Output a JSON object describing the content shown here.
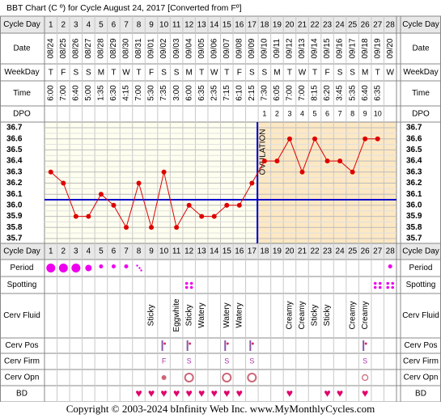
{
  "header": {
    "title": "BBT Chart (C º) for Cycle August 24, 2017  [Converted from Fº]"
  },
  "row_labels": {
    "cycle_day": "Cycle Day",
    "date": "Date",
    "weekday": "WeekDay",
    "time": "Time",
    "dpo": "DPO",
    "period": "Period",
    "spotting": "Spotting",
    "cerv_fluid": "Cerv Fluid",
    "cerv_pos": "Cerv Pos",
    "cerv_firm": "Cerv Firm",
    "cerv_opn": "Cerv Opn",
    "bd": "BD"
  },
  "annotation": "OVULATION",
  "colors": {
    "border": "#888888",
    "header_bg": "#e8e8e8",
    "pre_ov_bg": "#fffff0",
    "post_ov_bg": "#fde8c4",
    "temp_line": "#dd0000",
    "coverline": "#0000cc",
    "period": "#ee00ee",
    "bd_heart": "#e0006c",
    "firm_text": "#aa33aa",
    "opening": "#cc6677"
  },
  "chart_data": {
    "type": "line",
    "title": "BBT Chart (C º) for Cycle August 24, 2017  [Converted from Fº]",
    "cycle_days": [
      1,
      2,
      3,
      4,
      5,
      6,
      7,
      8,
      9,
      10,
      11,
      12,
      13,
      14,
      15,
      16,
      17,
      18,
      19,
      20,
      21,
      22,
      23,
      24,
      25,
      26,
      27,
      28
    ],
    "dates": [
      "08/24",
      "08/25",
      "08/26",
      "08/27",
      "08/28",
      "08/29",
      "08/30",
      "08/31",
      "09/01",
      "09/02",
      "09/03",
      "09/04",
      "09/05",
      "09/06",
      "09/07",
      "09/08",
      "09/09",
      "09/10",
      "09/11",
      "09/12",
      "09/13",
      "09/14",
      "09/15",
      "09/16",
      "09/17",
      "09/18",
      "09/19",
      "09/20"
    ],
    "weekdays": [
      "T",
      "F",
      "S",
      "S",
      "M",
      "T",
      "W",
      "T",
      "F",
      "S",
      "S",
      "M",
      "T",
      "W",
      "T",
      "F",
      "S",
      "S",
      "M",
      "T",
      "W",
      "T",
      "F",
      "S",
      "S",
      "M",
      "T",
      "W"
    ],
    "times": [
      "6:00",
      "7:00",
      "6:40",
      "5:00",
      "1:35",
      "6:30",
      "4:15",
      "7:00",
      "5:30",
      "7:35",
      "3:00",
      "6:00",
      "6:35",
      "2:35",
      "7:15",
      "6:10",
      "2:15",
      "7:30",
      "6:05",
      "7:00",
      "7:00",
      "8:15",
      "6:20",
      "3:45",
      "5:35",
      "6:40",
      "6:35",
      ""
    ],
    "dpo": [
      "",
      "",
      "",
      "",
      "",
      "",
      "",
      "",
      "",
      "",
      "",
      "",
      "",
      "",
      "",
      "",
      "",
      "1",
      "2",
      "3",
      "4",
      "5",
      "6",
      "7",
      "8",
      "9",
      "10",
      ""
    ],
    "temperatures": [
      36.3,
      36.2,
      35.9,
      35.9,
      36.1,
      36.0,
      35.8,
      36.2,
      35.8,
      36.3,
      35.8,
      36.0,
      35.9,
      35.9,
      36.0,
      36.0,
      36.2,
      36.4,
      36.4,
      36.6,
      36.3,
      36.6,
      36.4,
      36.4,
      36.3,
      36.6,
      36.6,
      null
    ],
    "y_ticks": [
      36.7,
      36.6,
      36.5,
      36.4,
      36.3,
      36.2,
      36.1,
      36.0,
      35.9,
      35.8,
      35.7
    ],
    "ylim": [
      35.7,
      36.7
    ],
    "coverline": 36.05,
    "ovulation_day": 17,
    "period": [
      3,
      3,
      3,
      2,
      1,
      1,
      1,
      0.5,
      0,
      0,
      0,
      0,
      0,
      0,
      0,
      0,
      0,
      0,
      0,
      0,
      0,
      0,
      0,
      0,
      0,
      0,
      0,
      1
    ],
    "spotting_days": [
      12,
      27,
      28
    ],
    "cerv_fluid": {
      "9": "Sticky",
      "11": "Eggwhite",
      "12": "Sticky",
      "13": "Watery",
      "15": "Watery",
      "16": "Watery",
      "20": "Creamy",
      "21": "Creamy",
      "22": "Sticky",
      "23": "Sticky",
      "25": "Creamy",
      "26": "Creamy"
    },
    "cerv_pos": [
      10,
      12,
      15,
      17,
      26
    ],
    "cerv_firm": {
      "10": "F",
      "12": "S",
      "15": "S",
      "17": "S",
      "26": "S"
    },
    "cerv_opn": {
      "10": "small",
      "12": "large",
      "15": "large",
      "17": "large",
      "26": "medium"
    },
    "bd_days": [
      8,
      9,
      10,
      11,
      12,
      13,
      14,
      15,
      16,
      20,
      23,
      24,
      26
    ]
  },
  "footer": {
    "copyright": "Copyright © 2003-2024 bInfinity Web Inc.    www.MyMonthlyCycles.com"
  }
}
